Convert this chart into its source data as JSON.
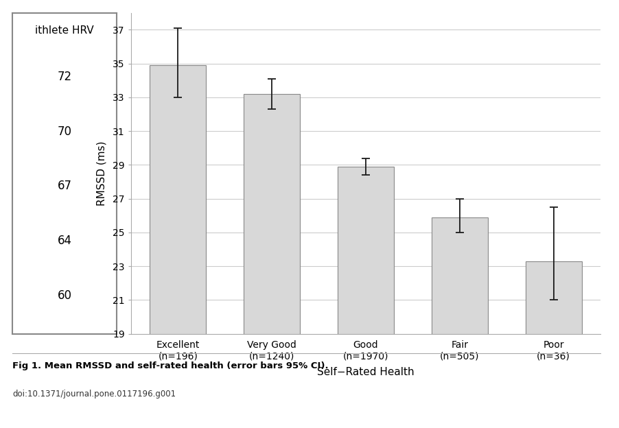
{
  "categories": [
    "Excellent\n(n=196)",
    "Very Good\n(n=1240)",
    "Good\n(n=1970)",
    "Fair\n(n=505)",
    "Poor\n(n=36)"
  ],
  "values": [
    34.9,
    33.2,
    28.9,
    25.9,
    23.3
  ],
  "errors_upper": [
    2.2,
    0.9,
    0.5,
    1.1,
    3.2
  ],
  "errors_lower": [
    1.9,
    0.9,
    0.5,
    0.9,
    2.3
  ],
  "bar_color": "#d8d8d8",
  "bar_edgecolor": "#888888",
  "error_color": "#1a1a1a",
  "ylabel": "RMSSD (ms)",
  "xlabel": "Self−Rated Health",
  "ylim": [
    19,
    38
  ],
  "yticks": [
    19,
    21,
    23,
    25,
    27,
    29,
    31,
    33,
    35,
    37
  ],
  "grid_color": "#cccccc",
  "background_color": "#ffffff",
  "fig_caption": "Fig 1. Mean RMSSD and self-rated health (error bars 95% CI).",
  "doi_text": "doi:10.1371/journal.pone.0117196.g001",
  "inset_title": "ithlete HRV",
  "inset_values": [
    72,
    70,
    67,
    64,
    60
  ],
  "inset_box_color": "#888888"
}
